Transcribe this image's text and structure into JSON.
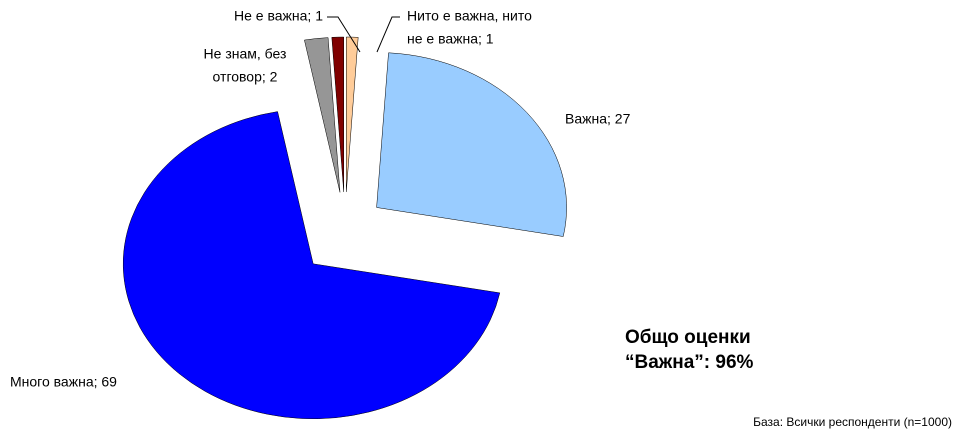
{
  "chart_data": {
    "type": "pie",
    "values": [
      1,
      27,
      69,
      2,
      1
    ],
    "value_labels": [
      [
        "Нито е важна, нито",
        "не е важна; 1"
      ],
      [
        "Важна; 27"
      ],
      [
        "Много важна; 69"
      ],
      [
        "Не знам, без",
        "отговор; 2"
      ],
      [
        "Не е важна; 1"
      ]
    ],
    "colors": [
      "#ffcc99",
      "#99ccff",
      "#0000ff",
      "#969696",
      "#800000"
    ],
    "annotations": [
      "Общо оценки",
      "“Важна”: 96%"
    ],
    "footnote": "База: Всички респонденти (n=1000)"
  }
}
